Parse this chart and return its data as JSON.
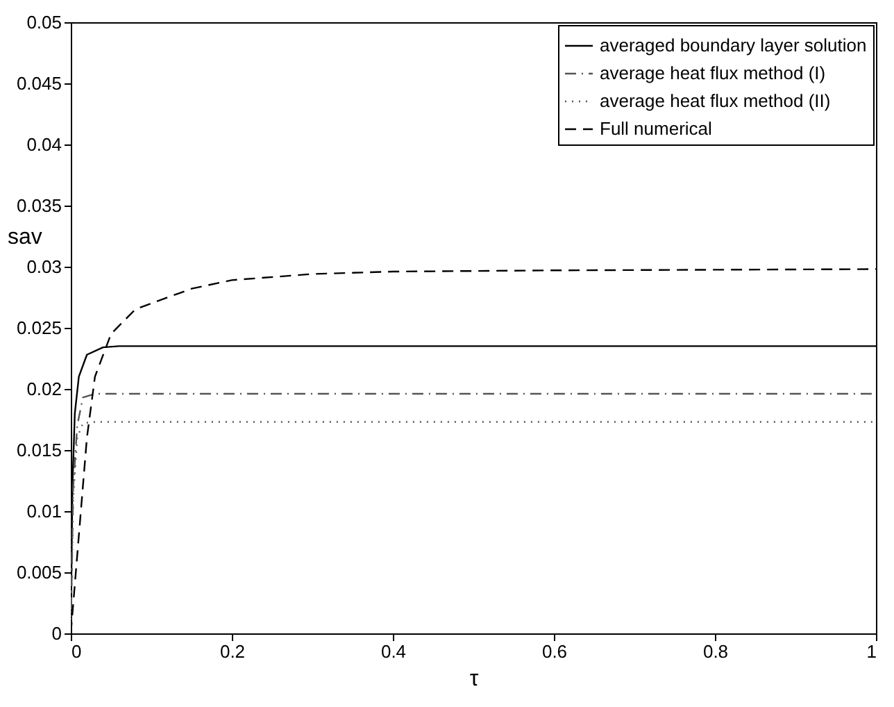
{
  "chart_data": {
    "type": "line",
    "xlabel": "τ",
    "ylabel": "sav",
    "xlim": [
      0,
      1
    ],
    "ylim": [
      0,
      0.05
    ],
    "xticks": [
      0,
      0.2,
      0.4,
      0.6,
      0.8,
      1
    ],
    "yticks": [
      0,
      0.005,
      0.01,
      0.015,
      0.02,
      0.025,
      0.03,
      0.035,
      0.04,
      0.045,
      0.05
    ],
    "grid": false,
    "legend": "top right",
    "marker": "none",
    "series": [
      {
        "name": "averaged boundary layer solution",
        "color": "#000000",
        "line_style": "solid",
        "x": [
          0,
          0.002,
          0.005,
          0.01,
          0.02,
          0.04,
          0.06,
          1
        ],
        "values": [
          0,
          0.012,
          0.018,
          0.021,
          0.0228,
          0.0234,
          0.0235,
          0.0235
        ]
      },
      {
        "name": "average heat flux method (I)",
        "color": "#555555",
        "line_style": "dashdot",
        "x": [
          0,
          0.003,
          0.008,
          0.015,
          0.03,
          1
        ],
        "values": [
          0,
          0.012,
          0.017,
          0.0193,
          0.0196,
          0.0196
        ]
      },
      {
        "name": "average heat flux method (II)",
        "color": "#555555",
        "line_style": "dotted",
        "x": [
          0,
          0.003,
          0.008,
          0.015,
          0.03,
          1
        ],
        "values": [
          0,
          0.011,
          0.016,
          0.0172,
          0.0173,
          0.0173
        ]
      },
      {
        "name": "Full numerical",
        "color": "#000000",
        "line_style": "dashed",
        "x": [
          0,
          0.01,
          0.02,
          0.03,
          0.05,
          0.08,
          0.1,
          0.15,
          0.2,
          0.3,
          0.4,
          0.6,
          1
        ],
        "values": [
          0,
          0.008,
          0.016,
          0.021,
          0.0245,
          0.0265,
          0.027,
          0.0282,
          0.0289,
          0.0294,
          0.0296,
          0.0297,
          0.0298
        ]
      }
    ]
  }
}
